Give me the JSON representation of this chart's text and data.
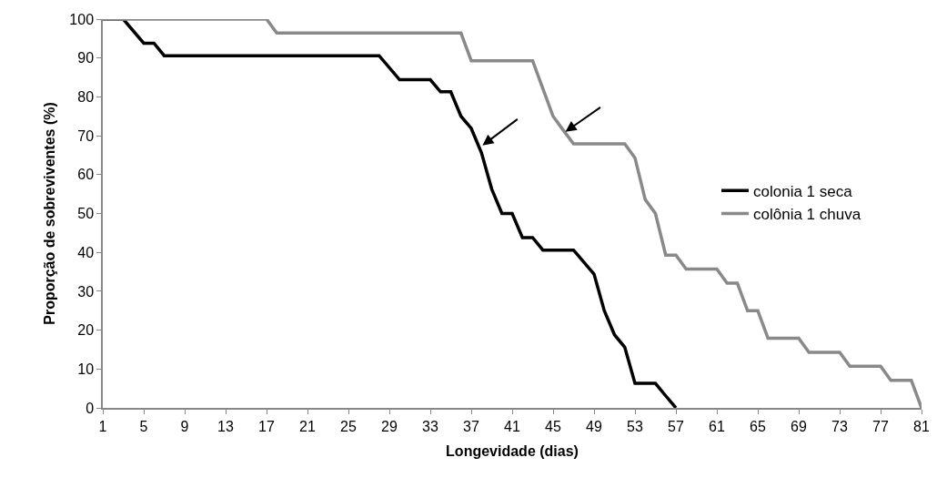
{
  "chart_data": {
    "type": "line",
    "xlabel": "Longevidade (dias)",
    "ylabel": "Proporção de sobreviventes (%)",
    "xlim": [
      1,
      81
    ],
    "xticks": [
      1,
      5,
      9,
      13,
      17,
      21,
      25,
      29,
      33,
      37,
      41,
      45,
      49,
      53,
      57,
      61,
      65,
      69,
      73,
      77,
      81
    ],
    "ylim": [
      0,
      100
    ],
    "yticks": [
      0,
      10,
      20,
      30,
      40,
      50,
      60,
      70,
      80,
      90,
      100
    ],
    "grid": false,
    "legend": "right",
    "marker": "none",
    "line_style": "solid",
    "series": [
      {
        "name": "colonia 1 seca",
        "color": "#000000",
        "x": [
          1,
          3,
          5,
          6,
          7,
          28,
          30,
          33,
          34,
          35,
          36,
          37,
          38,
          39,
          40,
          41,
          42,
          43,
          44,
          47,
          48,
          49,
          50,
          51,
          52,
          53,
          55,
          56,
          57
        ],
        "values": [
          100,
          100,
          93.8,
          93.8,
          90.6,
          90.6,
          84.4,
          84.4,
          81.3,
          81.3,
          75,
          71.9,
          65.6,
          56.3,
          50,
          50,
          43.8,
          43.8,
          40.6,
          40.6,
          37.5,
          34.4,
          25,
          18.8,
          15.6,
          6.3,
          6.3,
          3.1,
          0
        ]
      },
      {
        "name": "colônia 1 chuva",
        "color": "#898989",
        "x": [
          1,
          17,
          18,
          36,
          37,
          43,
          44,
          45,
          46,
          47,
          52,
          53,
          54,
          55,
          56,
          57,
          58,
          61,
          62,
          63,
          64,
          65,
          66,
          69,
          70,
          73,
          74,
          77,
          78,
          80,
          81
        ],
        "values": [
          100,
          100,
          96.4,
          96.4,
          89.3,
          89.3,
          82.1,
          75,
          71.4,
          67.9,
          67.9,
          64.3,
          53.6,
          50,
          39.3,
          39.3,
          35.7,
          35.7,
          32.1,
          32.1,
          25,
          25,
          17.9,
          17.9,
          14.3,
          14.3,
          10.7,
          10.7,
          7.1,
          7.1,
          0
        ]
      }
    ]
  }
}
